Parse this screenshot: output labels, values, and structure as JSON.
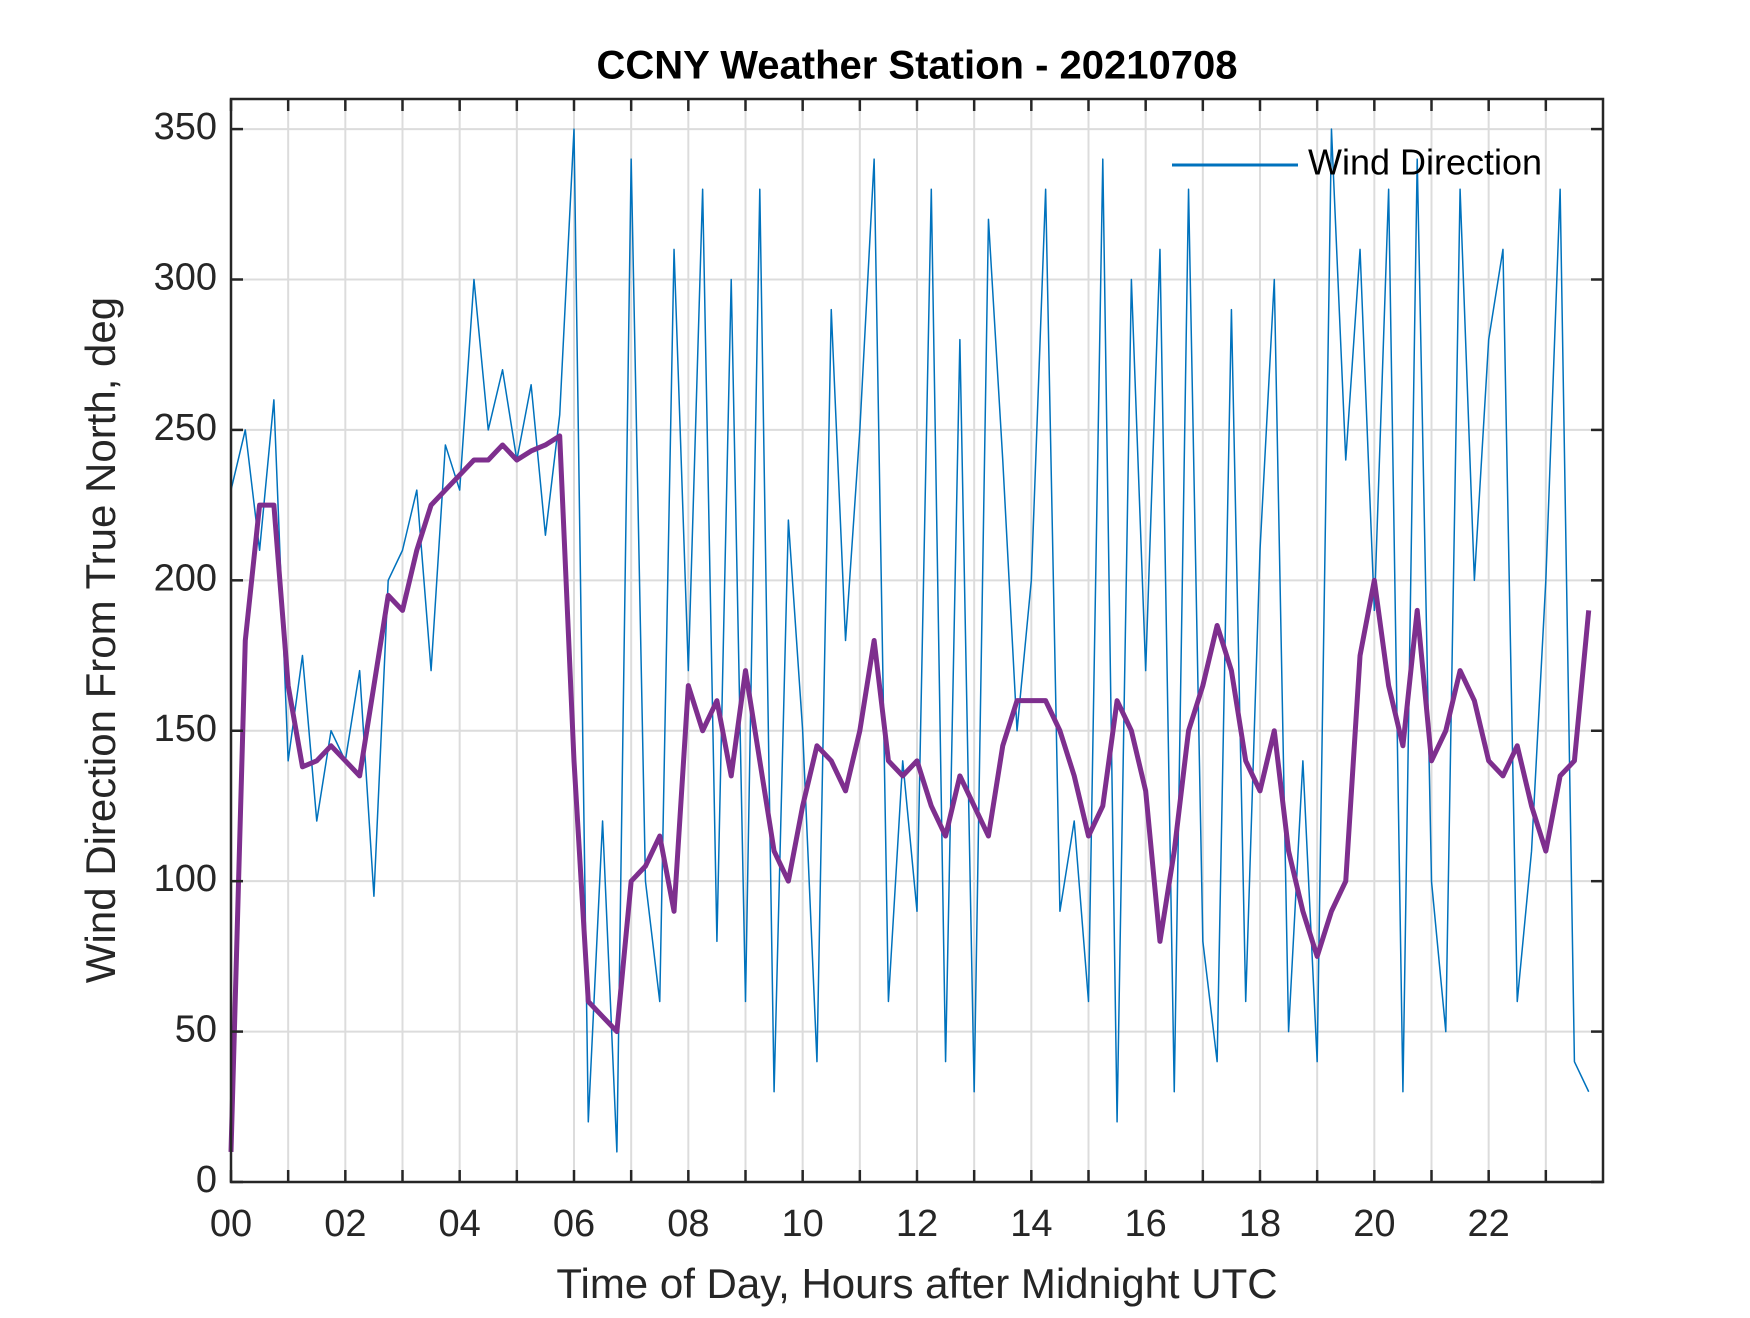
{
  "chart_data": {
    "type": "line",
    "title": "CCNY Weather Station - 20210708",
    "x_label": "Time of Day, Hours after Midnight UTC",
    "y_label": "Wind Direction From True North, deg",
    "xlim": [
      0,
      24
    ],
    "xticks": [
      {
        "value": 0,
        "label": "00"
      },
      {
        "value": 2,
        "label": "02"
      },
      {
        "value": 4,
        "label": "04"
      },
      {
        "value": 6,
        "label": "06"
      },
      {
        "value": 8,
        "label": "08"
      },
      10,
      12,
      14,
      16,
      18,
      20,
      22
    ],
    "xminorticks": [
      1,
      3,
      5,
      7,
      9,
      11,
      13,
      15,
      17,
      19,
      21,
      23
    ],
    "ylim": [
      0,
      360
    ],
    "yticks": [
      0,
      50,
      100,
      150,
      200,
      250,
      300,
      350
    ],
    "grid": true,
    "legend": "top-right",
    "x": [
      0,
      0.25,
      0.5,
      0.75,
      1,
      1.25,
      1.5,
      1.75,
      2,
      2.25,
      2.5,
      2.75,
      3,
      3.25,
      3.5,
      3.75,
      4,
      4.25,
      4.5,
      4.75,
      5,
      5.25,
      5.5,
      5.75,
      6,
      6.25,
      6.5,
      6.75,
      7,
      7.25,
      7.5,
      7.75,
      8,
      8.25,
      8.5,
      8.75,
      9,
      9.25,
      9.5,
      9.75,
      10,
      10.25,
      10.5,
      10.75,
      11,
      11.25,
      11.5,
      11.75,
      12,
      12.25,
      12.5,
      12.75,
      13,
      13.25,
      13.5,
      13.75,
      14,
      14.25,
      14.5,
      14.75,
      15,
      15.25,
      15.5,
      15.75,
      16,
      16.25,
      16.5,
      16.75,
      17,
      17.25,
      17.5,
      17.75,
      18,
      18.25,
      18.5,
      18.75,
      19,
      19.25,
      19.5,
      19.75,
      20,
      20.25,
      20.5,
      20.75,
      21,
      21.25,
      21.5,
      21.75,
      22,
      22.25,
      22.5,
      22.75,
      23,
      23.25,
      23.5,
      23.75
    ],
    "series": [
      {
        "name": "Wind Direction",
        "color": "#0072bd",
        "width": 1.5,
        "values": [
          230,
          250,
          210,
          260,
          140,
          175,
          120,
          150,
          140,
          170,
          95,
          200,
          210,
          230,
          170,
          245,
          230,
          300,
          250,
          270,
          240,
          265,
          215,
          255,
          350,
          20,
          120,
          10,
          340,
          100,
          60,
          310,
          170,
          330,
          80,
          300,
          60,
          330,
          30,
          220,
          150,
          40,
          290,
          180,
          250,
          340,
          60,
          140,
          90,
          330,
          40,
          280,
          30,
          320,
          240,
          150,
          200,
          330,
          90,
          120,
          60,
          340,
          20,
          300,
          170,
          310,
          30,
          330,
          80,
          40,
          290,
          60,
          210,
          300,
          50,
          140,
          40,
          350,
          240,
          310,
          190,
          330,
          30,
          340,
          100,
          50,
          330,
          200,
          280,
          310,
          60,
          110,
          200,
          330,
          40,
          30
        ]
      },
      {
        "color": "#7e2f8e",
        "width": 5,
        "values": [
          10,
          180,
          225,
          225,
          165,
          138,
          140,
          145,
          140,
          135,
          165,
          195,
          190,
          210,
          225,
          230,
          235,
          240,
          240,
          245,
          240,
          243,
          245,
          248,
          140,
          60,
          55,
          50,
          100,
          105,
          115,
          90,
          165,
          150,
          160,
          135,
          170,
          140,
          110,
          100,
          125,
          145,
          140,
          130,
          150,
          180,
          140,
          135,
          140,
          125,
          115,
          135,
          125,
          115,
          145,
          160,
          160,
          160,
          150,
          135,
          115,
          125,
          160,
          150,
          130,
          80,
          110,
          150,
          165,
          185,
          170,
          140,
          130,
          150,
          110,
          90,
          75,
          90,
          100,
          175,
          200,
          165,
          145,
          190,
          140,
          150,
          170,
          160,
          140,
          135,
          145,
          125,
          110,
          135,
          140,
          190
        ]
      }
    ]
  }
}
